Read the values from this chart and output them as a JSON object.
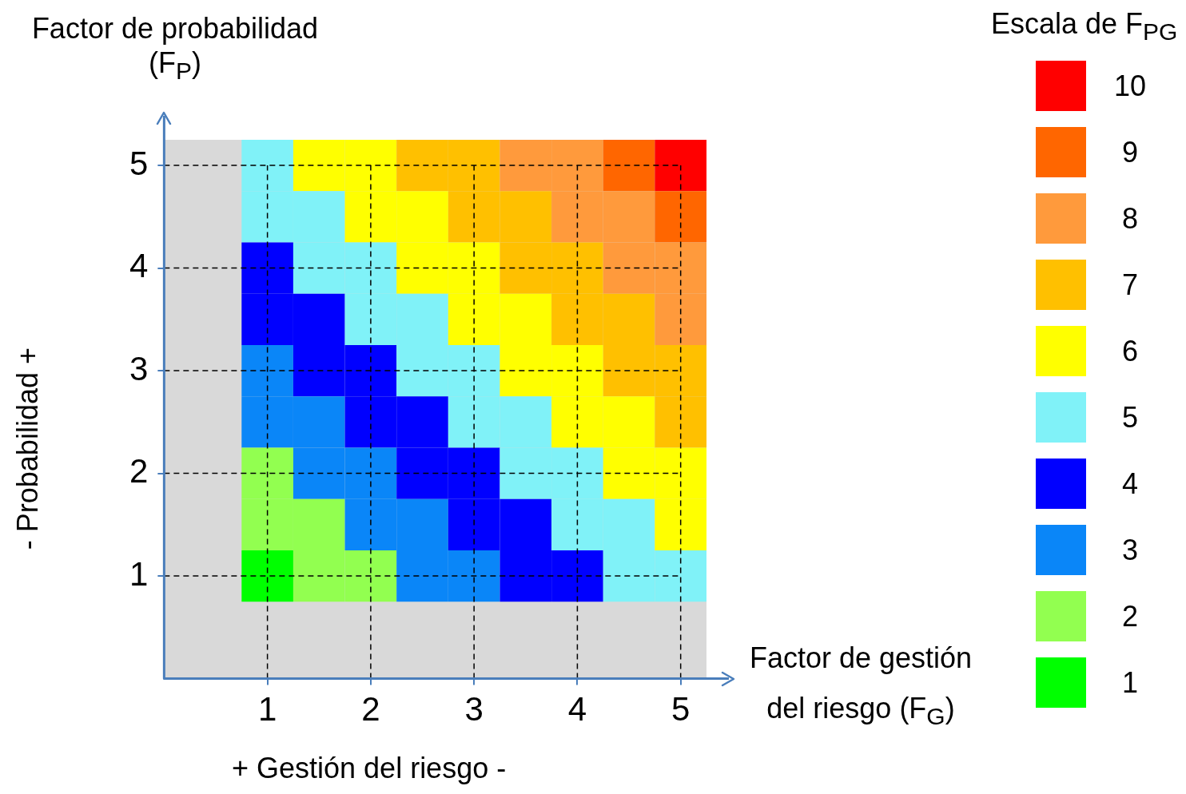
{
  "chart_data": {
    "type": "heatmap",
    "ylabel": "Factor de probabilidad (F$_{P}$)",
    "xlabel": "Factor de gestión del riesgo (F$_{G}$)",
    "clabel": "Escala de F$_{PG}$",
    "annotations": [
      "+   Gestión del riesgo   -",
      "- Probabilidad   +"
    ],
    "categories": [
      "1",
      null,
      "2",
      null,
      "3",
      null,
      "4",
      null,
      "5"
    ],
    "y_categories": [
      "5",
      null,
      "4",
      null,
      "3",
      null,
      "2",
      null,
      "1"
    ],
    "cells": [
      [
        5,
        6,
        6,
        7,
        7,
        8,
        8,
        9,
        10
      ],
      [
        5,
        5,
        6,
        6,
        7,
        7,
        8,
        8,
        9
      ],
      [
        4,
        5,
        5,
        6,
        6,
        7,
        7,
        8,
        8
      ],
      [
        4,
        4,
        5,
        5,
        6,
        6,
        7,
        7,
        8
      ],
      [
        3,
        4,
        4,
        5,
        5,
        6,
        6,
        7,
        7
      ],
      [
        3,
        3,
        4,
        4,
        5,
        5,
        6,
        6,
        7
      ],
      [
        2,
        3,
        3,
        4,
        4,
        5,
        5,
        6,
        6
      ],
      [
        2,
        2,
        3,
        3,
        4,
        4,
        5,
        5,
        6
      ],
      [
        1,
        2,
        2,
        3,
        3,
        4,
        4,
        5,
        5
      ]
    ],
    "clim": [
      0.5,
      10.5
    ],
    "cticks": [
      1,
      2,
      3,
      4,
      5,
      6,
      7,
      8,
      9,
      10
    ],
    "colors": [
      "#00ff00",
      "#92ff50",
      "#0a86f8",
      "#0000ff",
      "#80f2f8",
      "#ffff00",
      "#ffc000",
      "#ff9a3c",
      "#ff6600",
      "#ff0000"
    ],
    "grid": true,
    "line_style": "dashed"
  }
}
